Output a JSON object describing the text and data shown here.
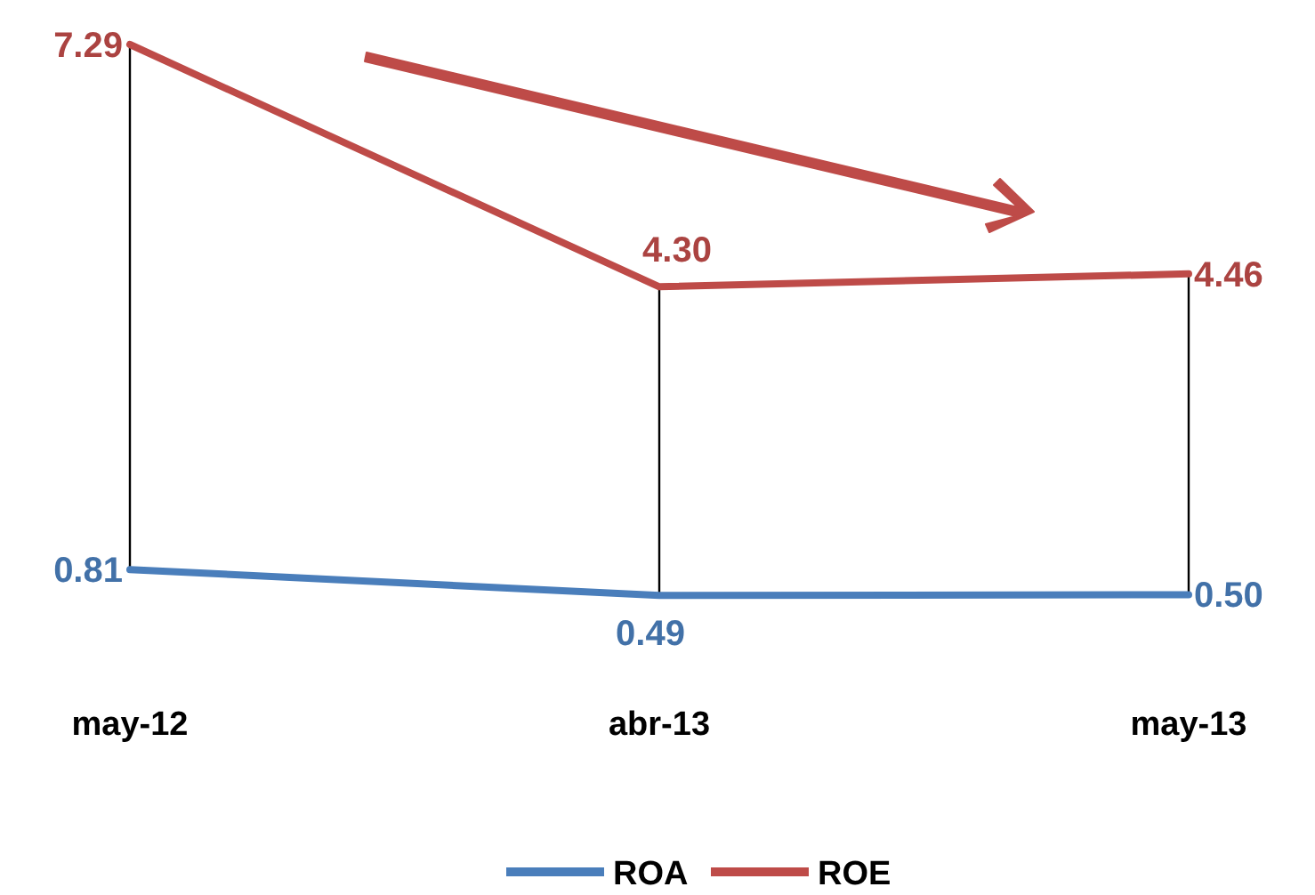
{
  "chart_data": {
    "type": "line",
    "categories": [
      "may-12",
      "abr-13",
      "may-13"
    ],
    "series": [
      {
        "name": "ROA",
        "color": "#4a7ebb",
        "values": [
          0.81,
          0.49,
          0.5
        ],
        "value_labels": [
          "0.81",
          "0.49",
          "0.50"
        ]
      },
      {
        "name": "ROE",
        "color": "#be4b48",
        "values": [
          7.29,
          4.3,
          4.46
        ],
        "value_labels": [
          "7.29",
          "4.30",
          "4.46"
        ]
      }
    ],
    "legend": "bottom",
    "marker": "none",
    "line_style": "solid"
  }
}
